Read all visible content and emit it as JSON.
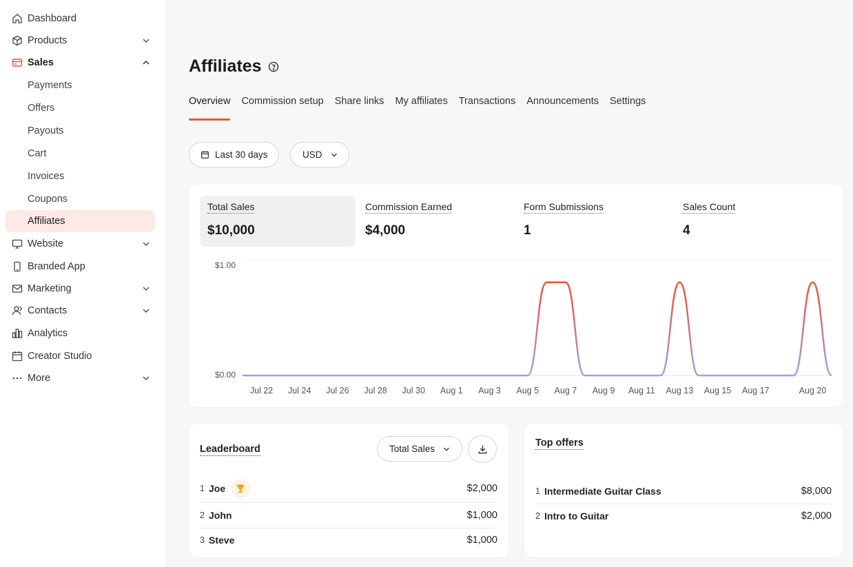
{
  "sidebar": {
    "items": [
      {
        "label": "Dashboard",
        "icon": "home-icon",
        "expandable": false
      },
      {
        "label": "Products",
        "icon": "box-icon",
        "expandable": true
      },
      {
        "label": "Sales",
        "icon": "card-icon",
        "expandable": true,
        "expanded": true
      },
      {
        "label": "Website",
        "icon": "monitor-icon",
        "expandable": true
      },
      {
        "label": "Branded App",
        "icon": "phone-icon",
        "expandable": false
      },
      {
        "label": "Marketing",
        "icon": "mail-icon",
        "expandable": true
      },
      {
        "label": "Contacts",
        "icon": "contacts-icon",
        "expandable": true
      },
      {
        "label": "Analytics",
        "icon": "analytics-icon",
        "expandable": false
      },
      {
        "label": "Creator Studio",
        "icon": "calendar-icon",
        "expandable": false
      },
      {
        "label": "More",
        "icon": "more-icon",
        "expandable": true
      }
    ],
    "sales_sub": [
      "Payments",
      "Offers",
      "Payouts",
      "Cart",
      "Invoices",
      "Coupons",
      "Affiliates"
    ],
    "selected_sub": "Affiliates"
  },
  "page": {
    "title": "Affiliates",
    "tabs": [
      "Overview",
      "Commission setup",
      "Share links",
      "My affiliates",
      "Transactions",
      "Announcements",
      "Settings"
    ],
    "active_tab": "Overview"
  },
  "filters": {
    "date_range": "Last 30 days",
    "currency": "USD"
  },
  "metrics": [
    {
      "label": "Total Sales",
      "value": "$10,000"
    },
    {
      "label": "Commission Earned",
      "value": "$4,000"
    },
    {
      "label": "Form Submissions",
      "value": "1"
    },
    {
      "label": "Sales Count",
      "value": "4"
    }
  ],
  "chart_data": {
    "type": "line",
    "x": [
      "Jul 22",
      "Jul 24",
      "Jul 26",
      "Jul 28",
      "Jul 30",
      "Aug 1",
      "Aug 3",
      "Aug 5",
      "Aug 7",
      "Aug 9",
      "Aug 11",
      "Aug 13",
      "Aug 15",
      "Aug 17",
      "Aug 20"
    ],
    "y_ticks": [
      "$1.00",
      "$0.00"
    ],
    "ylim": [
      0,
      1
    ],
    "series": [
      {
        "points": [
          [
            "Jul 21",
            0
          ],
          [
            "Jul 22",
            0
          ],
          [
            "Jul 24",
            0
          ],
          [
            "Jul 26",
            0
          ],
          [
            "Jul 28",
            0
          ],
          [
            "Jul 30",
            0
          ],
          [
            "Aug 1",
            0
          ],
          [
            "Aug 3",
            0
          ],
          [
            "Aug 5",
            0
          ],
          [
            "Aug 6",
            0.8
          ],
          [
            "Aug 7",
            0.8
          ],
          [
            "Aug 8",
            0
          ],
          [
            "Aug 11",
            0
          ],
          [
            "Aug 12",
            0
          ],
          [
            "Aug 13",
            0.8
          ],
          [
            "Aug 14",
            0
          ],
          [
            "Aug 17",
            0
          ],
          [
            "Aug 19",
            0
          ],
          [
            "Aug 20",
            0.8
          ],
          [
            "Aug 21",
            0
          ]
        ]
      }
    ],
    "colors": {
      "line_top": "#e8553d",
      "line_bottom": "#a79ee6"
    }
  },
  "leaderboard": {
    "title": "Leaderboard",
    "sort_label": "Total Sales",
    "rows": [
      {
        "rank": "1",
        "name": "Joe",
        "amount": "$2,000",
        "trophy": true
      },
      {
        "rank": "2",
        "name": "John",
        "amount": "$1,000"
      },
      {
        "rank": "3",
        "name": "Steve",
        "amount": "$1,000"
      }
    ]
  },
  "top_offers": {
    "title": "Top offers",
    "rows": [
      {
        "rank": "1",
        "name": "Intermediate Guitar Class",
        "amount": "$8,000"
      },
      {
        "rank": "2",
        "name": "Intro to Guitar",
        "amount": "$2,000"
      }
    ]
  },
  "colors": {
    "accent": "#e8553d",
    "selected_bg": "#fde9e5"
  }
}
